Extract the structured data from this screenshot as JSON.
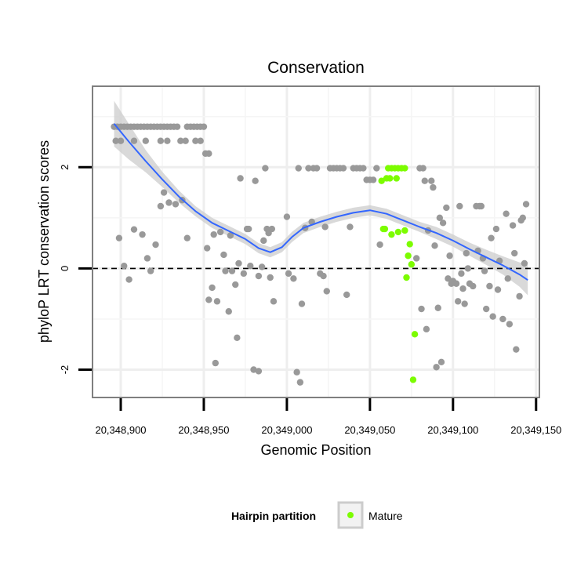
{
  "chart_data": {
    "type": "scatter",
    "title": "Conservation",
    "xlabel": "Genomic Position",
    "ylabel": "phyloP LRT conservation scores",
    "xlim": [
      20348883,
      20349152
    ],
    "ylim": [
      -2.55,
      3.6
    ],
    "xticks": [
      20348900,
      20348950,
      20349000,
      20349050,
      20349100,
      20349150
    ],
    "xtick_labels": [
      "20,348,900",
      "20,348,950",
      "20,349,000",
      "20,349,050",
      "20,349,100",
      "20,349,150"
    ],
    "yticks": [
      -2,
      0,
      2
    ],
    "ytick_labels": [
      "-2",
      "0",
      "2"
    ],
    "reference_line": {
      "y": 0,
      "style": "dashed"
    },
    "grid": true,
    "legend": {
      "title": "Hairpin partition",
      "position": "bottom",
      "entries": [
        {
          "label": "Mature",
          "color": "#7cfc00"
        }
      ]
    },
    "colors": {
      "other": "#999999",
      "mature": "#7cfc00",
      "smooth": "#3366ff",
      "band": "#cccccc"
    },
    "series": [
      {
        "name": "Other",
        "color": "#999999",
        "points": [
          [
            20348896,
            2.8
          ],
          [
            20348898,
            2.8
          ],
          [
            20348900,
            2.8
          ],
          [
            20348902,
            2.8
          ],
          [
            20348904,
            2.8
          ],
          [
            20348906,
            2.8
          ],
          [
            20348908,
            2.8
          ],
          [
            20348910,
            2.8
          ],
          [
            20348912,
            2.8
          ],
          [
            20348914,
            2.8
          ],
          [
            20348916,
            2.8
          ],
          [
            20348918,
            2.8
          ],
          [
            20348920,
            2.8
          ],
          [
            20348922,
            2.8
          ],
          [
            20348924,
            2.8
          ],
          [
            20348926,
            2.8
          ],
          [
            20348928,
            2.8
          ],
          [
            20348930,
            2.8
          ],
          [
            20348932,
            2.8
          ],
          [
            20348934,
            2.8
          ],
          [
            20348940,
            2.8
          ],
          [
            20348942,
            2.8
          ],
          [
            20348944,
            2.8
          ],
          [
            20348946,
            2.8
          ],
          [
            20348948,
            2.8
          ],
          [
            20348950,
            2.8
          ],
          [
            20348897,
            2.52
          ],
          [
            20348900,
            2.52
          ],
          [
            20348908,
            2.52
          ],
          [
            20348915,
            2.52
          ],
          [
            20348924,
            2.52
          ],
          [
            20348928,
            2.52
          ],
          [
            20348936,
            2.52
          ],
          [
            20348939,
            2.52
          ],
          [
            20348945,
            2.52
          ],
          [
            20348948,
            2.52
          ],
          [
            20348951,
            2.27
          ],
          [
            20348953,
            2.27
          ],
          [
            20348899,
            0.6
          ],
          [
            20348902,
            0.05
          ],
          [
            20348905,
            -0.22
          ],
          [
            20348908,
            0.77
          ],
          [
            20348913,
            0.67
          ],
          [
            20348916,
            0.2
          ],
          [
            20348918,
            -0.05
          ],
          [
            20348921,
            0.47
          ],
          [
            20348924,
            1.23
          ],
          [
            20348926,
            1.5
          ],
          [
            20348929,
            1.3
          ],
          [
            20348933,
            1.27
          ],
          [
            20348937,
            1.35
          ],
          [
            20348940,
            0.6
          ],
          [
            20348952,
            0.4
          ],
          [
            20348953,
            -0.62
          ],
          [
            20348955,
            -0.38
          ],
          [
            20348956,
            0.67
          ],
          [
            20348957,
            -1.87
          ],
          [
            20348958,
            -0.65
          ],
          [
            20348960,
            0.72
          ],
          [
            20348962,
            0.27
          ],
          [
            20348963,
            -0.05
          ],
          [
            20348965,
            -0.85
          ],
          [
            20348966,
            0.65
          ],
          [
            20348967,
            -0.05
          ],
          [
            20348969,
            -0.32
          ],
          [
            20348970,
            -1.37
          ],
          [
            20348971,
            0.1
          ],
          [
            20348972,
            1.78
          ],
          [
            20348974,
            -0.1
          ],
          [
            20348976,
            0.78
          ],
          [
            20348977,
            0.78
          ],
          [
            20348978,
            0.05
          ],
          [
            20348980,
            -2.0
          ],
          [
            20348981,
            1.73
          ],
          [
            20348983,
            -0.15
          ],
          [
            20348983,
            -2.03
          ],
          [
            20348985,
            0.03
          ],
          [
            20348986,
            0.55
          ],
          [
            20348987,
            1.98
          ],
          [
            20348988,
            0.78
          ],
          [
            20348989,
            0.7
          ],
          [
            20348990,
            -0.18
          ],
          [
            20348991,
            0.78
          ],
          [
            20348992,
            -0.65
          ],
          [
            20349000,
            1.02
          ],
          [
            20349001,
            -0.1
          ],
          [
            20349004,
            -0.2
          ],
          [
            20349006,
            -2.05
          ],
          [
            20349007,
            1.98
          ],
          [
            20349008,
            -2.25
          ],
          [
            20349009,
            -0.7
          ],
          [
            20349011,
            0.8
          ],
          [
            20349013,
            1.98
          ],
          [
            20349015,
            0.92
          ],
          [
            20349016,
            1.98
          ],
          [
            20349018,
            1.98
          ],
          [
            20349020,
            -0.1
          ],
          [
            20349022,
            -0.15
          ],
          [
            20349023,
            0.82
          ],
          [
            20349024,
            -0.45
          ],
          [
            20349026,
            1.98
          ],
          [
            20349028,
            1.98
          ],
          [
            20349030,
            1.98
          ],
          [
            20349032,
            1.98
          ],
          [
            20349034,
            1.98
          ],
          [
            20349036,
            -0.52
          ],
          [
            20349038,
            0.82
          ],
          [
            20349040,
            1.98
          ],
          [
            20349042,
            1.98
          ],
          [
            20349044,
            1.98
          ],
          [
            20349046,
            1.98
          ],
          [
            20349048,
            1.75
          ],
          [
            20349050,
            1.75
          ],
          [
            20349052,
            1.75
          ],
          [
            20349054,
            1.98
          ],
          [
            20349056,
            0.47
          ],
          [
            20349078,
            0.2
          ],
          [
            20349080,
            1.98
          ],
          [
            20349081,
            -0.8
          ],
          [
            20349082,
            1.98
          ],
          [
            20349083,
            1.73
          ],
          [
            20349084,
            -1.2
          ],
          [
            20349085,
            0.75
          ],
          [
            20349087,
            1.73
          ],
          [
            20349088,
            1.6
          ],
          [
            20349089,
            0.45
          ],
          [
            20349090,
            -1.95
          ],
          [
            20349091,
            -0.78
          ],
          [
            20349092,
            1.0
          ],
          [
            20349093,
            -1.85
          ],
          [
            20349094,
            0.9
          ],
          [
            20349096,
            1.2
          ],
          [
            20349097,
            -0.2
          ],
          [
            20349098,
            0.25
          ],
          [
            20349099,
            -0.3
          ],
          [
            20349100,
            -0.25
          ],
          [
            20349102,
            -0.3
          ],
          [
            20349103,
            -0.65
          ],
          [
            20349104,
            1.23
          ],
          [
            20349105,
            -0.1
          ],
          [
            20349106,
            -0.4
          ],
          [
            20349107,
            -0.7
          ],
          [
            20349108,
            0.3
          ],
          [
            20349109,
            0.0
          ],
          [
            20349110,
            -0.3
          ],
          [
            20349112,
            -0.35
          ],
          [
            20349114,
            1.23
          ],
          [
            20349115,
            0.35
          ],
          [
            20349116,
            1.23
          ],
          [
            20349117,
            1.23
          ],
          [
            20349118,
            0.2
          ],
          [
            20349119,
            -0.05
          ],
          [
            20349120,
            -0.8
          ],
          [
            20349122,
            -0.35
          ],
          [
            20349123,
            0.6
          ],
          [
            20349124,
            -0.95
          ],
          [
            20349126,
            0.78
          ],
          [
            20349127,
            -0.42
          ],
          [
            20349128,
            0.15
          ],
          [
            20349130,
            -1.0
          ],
          [
            20349132,
            1.08
          ],
          [
            20349133,
            -0.2
          ],
          [
            20349134,
            -1.1
          ],
          [
            20349136,
            0.85
          ],
          [
            20349137,
            0.3
          ],
          [
            20349138,
            -1.6
          ],
          [
            20349140,
            -0.55
          ],
          [
            20349141,
            0.95
          ],
          [
            20349142,
            1.0
          ],
          [
            20349143,
            0.1
          ],
          [
            20349144,
            1.27
          ]
        ]
      },
      {
        "name": "Mature",
        "color": "#7cfc00",
        "points": [
          [
            20349057,
            1.73
          ],
          [
            20349058,
            0.78
          ],
          [
            20349059,
            0.78
          ],
          [
            20349060,
            1.78
          ],
          [
            20349061,
            1.98
          ],
          [
            20349063,
            1.98
          ],
          [
            20349065,
            1.98
          ],
          [
            20349067,
            1.98
          ],
          [
            20349069,
            1.98
          ],
          [
            20349071,
            1.98
          ],
          [
            20349062,
            1.78
          ],
          [
            20349066,
            1.78
          ],
          [
            20349063,
            0.67
          ],
          [
            20349067,
            0.72
          ],
          [
            20349071,
            0.75
          ],
          [
            20349072,
            -0.18
          ],
          [
            20349073,
            0.25
          ],
          [
            20349074,
            0.48
          ],
          [
            20349075,
            0.08
          ],
          [
            20349076,
            -2.2
          ],
          [
            20349077,
            -1.3
          ]
        ]
      }
    ],
    "smooth_curve": [
      [
        20348896,
        2.86
      ],
      [
        20348905,
        2.5
      ],
      [
        20348915,
        2.12
      ],
      [
        20348925,
        1.76
      ],
      [
        20348935,
        1.42
      ],
      [
        20348945,
        1.13
      ],
      [
        20348955,
        0.9
      ],
      [
        20348965,
        0.74
      ],
      [
        20348975,
        0.58
      ],
      [
        20348983,
        0.4
      ],
      [
        20348990,
        0.32
      ],
      [
        20348997,
        0.42
      ],
      [
        20349003,
        0.62
      ],
      [
        20349010,
        0.8
      ],
      [
        20349020,
        0.92
      ],
      [
        20349030,
        1.02
      ],
      [
        20349040,
        1.1
      ],
      [
        20349050,
        1.15
      ],
      [
        20349060,
        1.08
      ],
      [
        20349070,
        0.95
      ],
      [
        20349080,
        0.82
      ],
      [
        20349090,
        0.7
      ],
      [
        20349100,
        0.55
      ],
      [
        20349110,
        0.38
      ],
      [
        20349120,
        0.22
      ],
      [
        20349130,
        0.06
      ],
      [
        20349140,
        -0.12
      ],
      [
        20349145,
        -0.23
      ]
    ],
    "band_halfwidth": [
      0.45,
      0.35,
      0.22,
      0.15,
      0.12,
      0.1,
      0.1,
      0.1,
      0.1,
      0.1,
      0.1,
      0.1,
      0.1,
      0.1,
      0.1,
      0.1,
      0.1,
      0.1,
      0.1,
      0.1,
      0.1,
      0.12,
      0.12,
      0.13,
      0.15,
      0.18,
      0.24,
      0.3
    ]
  }
}
